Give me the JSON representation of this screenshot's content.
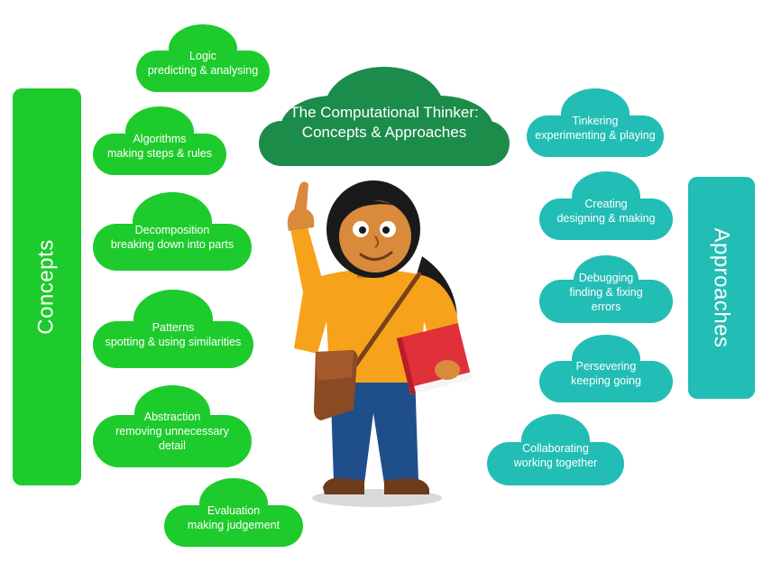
{
  "title": {
    "line1": "The Computational Thinker:",
    "line2": "Concepts & Approaches"
  },
  "sidebars": {
    "concepts": "Concepts",
    "approaches": "Approaches"
  },
  "concepts": [
    {
      "name": "Logic",
      "desc": "predicting & analysing"
    },
    {
      "name": "Algorithms",
      "desc": "making steps & rules"
    },
    {
      "name": "Decomposition",
      "desc": "breaking down into parts"
    },
    {
      "name": "Patterns",
      "desc": "spotting & using similarities"
    },
    {
      "name": "Abstraction",
      "desc": "removing unnecessary",
      "desc2": "detail"
    },
    {
      "name": "Evaluation",
      "desc": "making judgement"
    }
  ],
  "approaches": [
    {
      "name": "Tinkering",
      "desc": "experimenting & playing"
    },
    {
      "name": "Creating",
      "desc": "designing & making"
    },
    {
      "name": "Debugging",
      "desc": "finding & fixing",
      "desc2": "errors"
    },
    {
      "name": "Persevering",
      "desc": "keeping going"
    },
    {
      "name": "Collaborating",
      "desc": "working together"
    }
  ],
  "colors": {
    "concept_green": "#1ecb2c",
    "title_green": "#1c8c4a",
    "approach_teal": "#22bdb5",
    "character_shirt": "#f7a21b",
    "character_jeans": "#1f4f8a",
    "book_red": "#e0303a"
  }
}
